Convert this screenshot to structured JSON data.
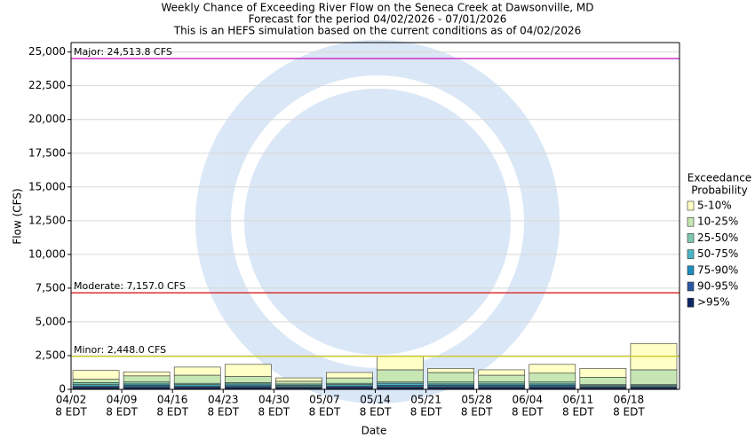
{
  "chart_data": {
    "type": "bar",
    "stacked": true,
    "title": [
      "Weekly Chance of Exceeding River Flow on the Seneca Creek at Dawsonville, MD",
      "Forecast for the period 04/02/2026 - 07/01/2026",
      "This is an HEFS simulation based on the current conditions as of 04/02/2026"
    ],
    "y_label": "Flow (CFS)",
    "x_label": "Date",
    "categories": [
      "04/02",
      "04/09",
      "04/16",
      "04/23",
      "04/30",
      "05/07",
      "05/14",
      "05/21",
      "05/28",
      "06/04",
      "06/11",
      "06/18"
    ],
    "category_sublabel": "8 EDT",
    "legend_title": [
      "Exceedance",
      "Probability"
    ],
    "series": [
      {
        "name": ">95%",
        "color": "#0d2766",
        "values": [
          120,
          130,
          120,
          130,
          100,
          120,
          130,
          130,
          130,
          130,
          100,
          100
        ]
      },
      {
        "name": "90-95%",
        "color": "#2b57a3",
        "values": [
          60,
          70,
          60,
          70,
          50,
          60,
          70,
          70,
          70,
          70,
          50,
          50
        ]
      },
      {
        "name": "75-90%",
        "color": "#1e8cbf",
        "values": [
          70,
          100,
          70,
          80,
          50,
          70,
          100,
          100,
          100,
          100,
          50,
          50
        ]
      },
      {
        "name": "50-75%",
        "color": "#4db5c8",
        "values": [
          100,
          100,
          100,
          120,
          100,
          100,
          150,
          100,
          100,
          100,
          80,
          80
        ]
      },
      {
        "name": "25-50%",
        "color": "#7cc8ad",
        "values": [
          150,
          150,
          100,
          100,
          100,
          100,
          100,
          150,
          150,
          150,
          70,
          70
        ]
      },
      {
        "name": "10-25%",
        "color": "#c6e6b3",
        "values": [
          250,
          450,
          600,
          450,
          200,
          400,
          900,
          700,
          500,
          650,
          550,
          1100
        ]
      },
      {
        "name": "5-10%",
        "color": "#ffffc6",
        "values": [
          650,
          300,
          600,
          900,
          250,
          400,
          1000,
          300,
          400,
          650,
          650,
          1950
        ]
      }
    ],
    "ylim": [
      0,
      25700
    ],
    "yticks": [
      0,
      {
        "value": 2500,
        "label": "2,500"
      },
      {
        "value": 5000,
        "label": "5,000"
      },
      {
        "value": 7500,
        "label": "7,500"
      },
      {
        "value": 10000,
        "label": "10,000"
      },
      {
        "value": 12500,
        "label": "12,500"
      },
      {
        "value": 15000,
        "label": "15,000"
      },
      {
        "value": 17500,
        "label": "17,500"
      },
      {
        "value": 20000,
        "label": "20,000"
      },
      {
        "value": 22500,
        "label": "22,500"
      },
      {
        "value": 25000,
        "label": "25,000"
      }
    ],
    "grid": true,
    "thresholds": [
      {
        "value": 24513.8,
        "label": "Major: 24,513.8 CFS",
        "color": "#cc33cc"
      },
      {
        "value": 7157.0,
        "label": "Moderate: 7,157.0 CFS",
        "color": "#dd3333"
      },
      {
        "value": 2448.0,
        "label": "Minor: 2,448.0 CFS",
        "color": "#cccc33"
      }
    ]
  }
}
